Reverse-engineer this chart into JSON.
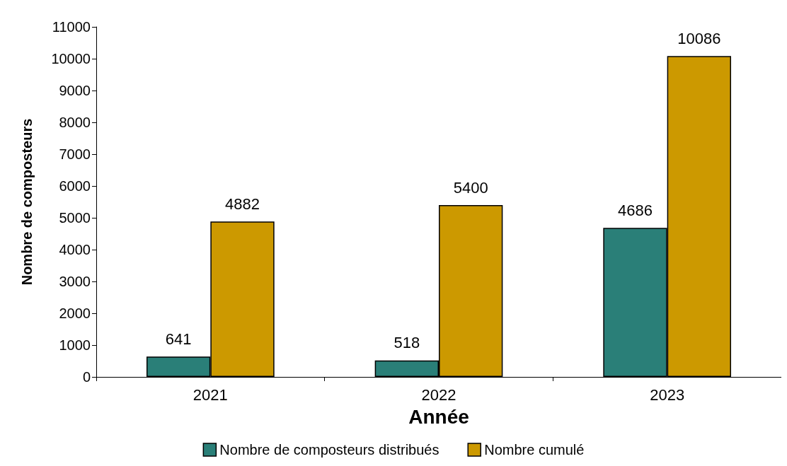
{
  "chart_data": {
    "type": "bar",
    "xlabel": "Année",
    "ylabel": "Nombre de composteurs",
    "categories": [
      "2021",
      "2022",
      "2023"
    ],
    "series": [
      {
        "name": "Nombre de composteurs distribués",
        "color": "#2a7f78",
        "values": [
          641,
          518,
          4686
        ]
      },
      {
        "name": "Nombre cumulé",
        "color": "#cc9900",
        "values": [
          4882,
          5400,
          10086
        ]
      }
    ],
    "ylim": [
      0,
      11000
    ],
    "yticks": [
      0,
      1000,
      2000,
      3000,
      4000,
      5000,
      6000,
      7000,
      8000,
      9000,
      10000,
      11000
    ],
    "grid": false,
    "legend": "bottom",
    "data_labels": true
  }
}
